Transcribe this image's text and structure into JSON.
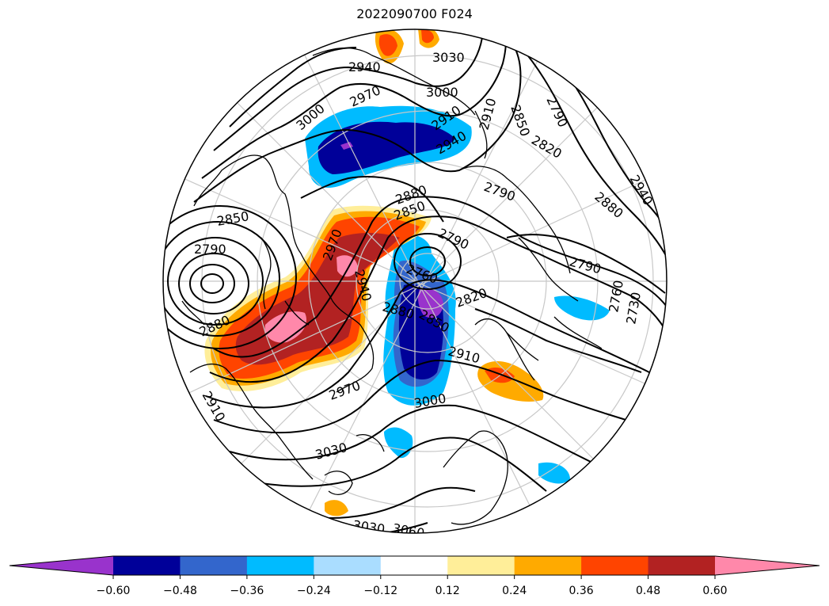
{
  "title": "2022090700 F024",
  "colorbar": {
    "colors": [
      "#9933cc",
      "#000099",
      "#3366cc",
      "#00bbff",
      "#aaddff",
      "#ffffff",
      "#ffee99",
      "#ffaa00",
      "#ff4400",
      "#b22222",
      "#ff88aa"
    ],
    "tick_labels": [
      "−0.60",
      "−0.48",
      "−0.36",
      "−0.24",
      "−0.12",
      "0.12",
      "0.24",
      "0.36",
      "0.48",
      "0.60"
    ],
    "extend": "both"
  },
  "contour_labels": [
    "3030",
    "2940",
    "3000",
    "2970",
    "3000",
    "2910",
    "2940",
    "2910",
    "2850",
    "2820",
    "2790",
    "2880",
    "2850",
    "2790",
    "2760",
    "2820",
    "2880",
    "2850",
    "2970",
    "2940",
    "2910",
    "2970",
    "3000",
    "3030",
    "3030",
    "3060",
    "2790",
    "2880",
    "2910",
    "2940",
    "2790",
    "2760",
    "2730",
    "2880",
    "2850",
    "2790"
  ]
}
